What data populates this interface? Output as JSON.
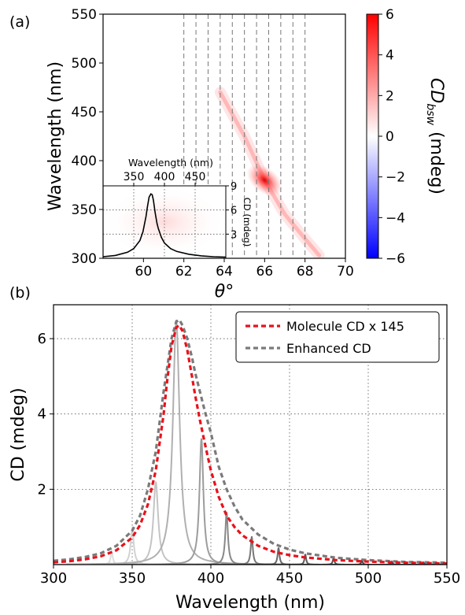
{
  "chart_data": [
    {
      "panel_label": "(a)",
      "type": "heatmap",
      "xlabel": "θ°",
      "ylabel": "Wavelength (nm)",
      "xlim": [
        58,
        70
      ],
      "ylim": [
        300,
        550
      ],
      "x_ticks": [
        "60",
        "62",
        "64",
        "66",
        "68",
        "70"
      ],
      "y_ticks": [
        "300",
        "350",
        "400",
        "450",
        "500",
        "550"
      ],
      "colorbar": {
        "label": "CD",
        "label_subscript": "bsw",
        "label_unit": "(mdeg)",
        "range": [
          -6,
          6
        ],
        "ticks": [
          "6",
          "4",
          "2",
          "0",
          "−2",
          "−4",
          "−6"
        ],
        "colors": [
          "#0000ff",
          "#ffffff",
          "#ff0000"
        ]
      },
      "dashed_lines_theta": [
        62.0,
        62.6,
        63.2,
        63.8,
        64.4,
        65.0,
        65.6,
        66.2,
        66.8,
        67.4,
        68.0
      ],
      "resonance_band": {
        "points": [
          [
            63.8,
            470
          ],
          [
            65.0,
            425
          ],
          [
            66.0,
            380
          ],
          [
            67.0,
            345
          ],
          [
            68.0,
            320
          ],
          [
            68.7,
            303
          ]
        ],
        "peak": {
          "theta": 66.0,
          "wavelength": 380,
          "cd": 6.0
        }
      },
      "inset": {
        "type": "line",
        "xlabel": "Wavelength (nm)",
        "ylabel": "CD  (mdeg)",
        "x_ticks": [
          "350",
          "400",
          "450"
        ],
        "y_ticks": [
          "3",
          "6",
          "9"
        ],
        "xlim": [
          300,
          500
        ],
        "ylim": [
          0,
          9
        ],
        "x": [
          300,
          320,
          340,
          350,
          360,
          365,
          370,
          372,
          375,
          378,
          380,
          382,
          385,
          388,
          390,
          395,
          400,
          410,
          420,
          440,
          460,
          480,
          500
        ],
        "y": [
          0.2,
          0.35,
          0.75,
          1.2,
          2.2,
          3.3,
          5.2,
          6.3,
          7.6,
          8.0,
          7.9,
          7.2,
          5.6,
          4.3,
          3.7,
          2.6,
          1.9,
          1.2,
          0.85,
          0.5,
          0.3,
          0.2,
          0.15
        ]
      }
    },
    {
      "panel_label": "(b)",
      "type": "line",
      "xlabel": "Wavelength (nm)",
      "ylabel": "CD (mdeg)",
      "xlim": [
        300,
        550
      ],
      "ylim": [
        0,
        6.9
      ],
      "x_ticks": [
        "300",
        "350",
        "400",
        "450",
        "500",
        "550"
      ],
      "y_ticks": [
        "2",
        "4",
        "6"
      ],
      "grid": true,
      "legend_position": "top-right",
      "series": [
        {
          "name": "Molecule CD x 145",
          "color": "#e8121c",
          "style": "dashed",
          "x": [
            300,
            310,
            320,
            330,
            340,
            350,
            355,
            360,
            365,
            370,
            372,
            375,
            378,
            380,
            382,
            385,
            388,
            390,
            393,
            396,
            400,
            405,
            410,
            415,
            420,
            430,
            440,
            450,
            460,
            480,
            500,
            525,
            550
          ],
          "y": [
            0.06,
            0.09,
            0.14,
            0.22,
            0.38,
            0.72,
            1.05,
            1.6,
            2.5,
            4.0,
            4.8,
            5.8,
            6.3,
            6.35,
            6.2,
            5.7,
            5.0,
            4.5,
            3.85,
            3.25,
            2.5,
            1.8,
            1.3,
            1.0,
            0.78,
            0.5,
            0.34,
            0.25,
            0.19,
            0.12,
            0.08,
            0.05,
            0.03
          ]
        },
        {
          "name": "Enhanced CD",
          "color": "#7a7a7a",
          "style": "dashed",
          "x": [
            300,
            310,
            320,
            330,
            340,
            350,
            355,
            360,
            365,
            370,
            375,
            378,
            380,
            382,
            385,
            388,
            390,
            393,
            396,
            400,
            405,
            410,
            415,
            420,
            430,
            440,
            450,
            460,
            480,
            500,
            525,
            550
          ],
          "y": [
            0.1,
            0.14,
            0.2,
            0.3,
            0.5,
            0.9,
            1.3,
            2.0,
            3.0,
            4.6,
            6.0,
            6.45,
            6.5,
            6.35,
            6.0,
            5.5,
            5.1,
            4.6,
            4.1,
            3.5,
            2.6,
            2.0,
            1.55,
            1.2,
            0.8,
            0.55,
            0.4,
            0.3,
            0.18,
            0.12,
            0.07,
            0.05
          ]
        }
      ],
      "resonance_peaks": [
        {
          "center": 337,
          "height": 0.35,
          "width": 0.8,
          "color": "#dddddd"
        },
        {
          "center": 350,
          "height": 0.95,
          "width": 1.2,
          "color": "#d2d2d2"
        },
        {
          "center": 365,
          "height": 2.2,
          "width": 1.8,
          "color": "#c4c4c4"
        },
        {
          "center": 378,
          "height": 6.5,
          "width": 2.6,
          "color": "#b0b0b0"
        },
        {
          "center": 394,
          "height": 3.35,
          "width": 1.5,
          "color": "#9c9c9c"
        },
        {
          "center": 410,
          "height": 1.4,
          "width": 1.0,
          "color": "#888888"
        },
        {
          "center": 426,
          "height": 0.75,
          "width": 0.8,
          "color": "#777777"
        },
        {
          "center": 443,
          "height": 0.45,
          "width": 0.7,
          "color": "#686868"
        },
        {
          "center": 460,
          "height": 0.28,
          "width": 0.6,
          "color": "#5c5c5c"
        },
        {
          "center": 478,
          "height": 0.18,
          "width": 0.6,
          "color": "#505050"
        },
        {
          "center": 496,
          "height": 0.12,
          "width": 0.5,
          "color": "#474747"
        },
        {
          "center": 515,
          "height": 0.08,
          "width": 0.5,
          "color": "#404040"
        },
        {
          "center": 535,
          "height": 0.06,
          "width": 0.5,
          "color": "#3a3a3a"
        }
      ]
    }
  ]
}
